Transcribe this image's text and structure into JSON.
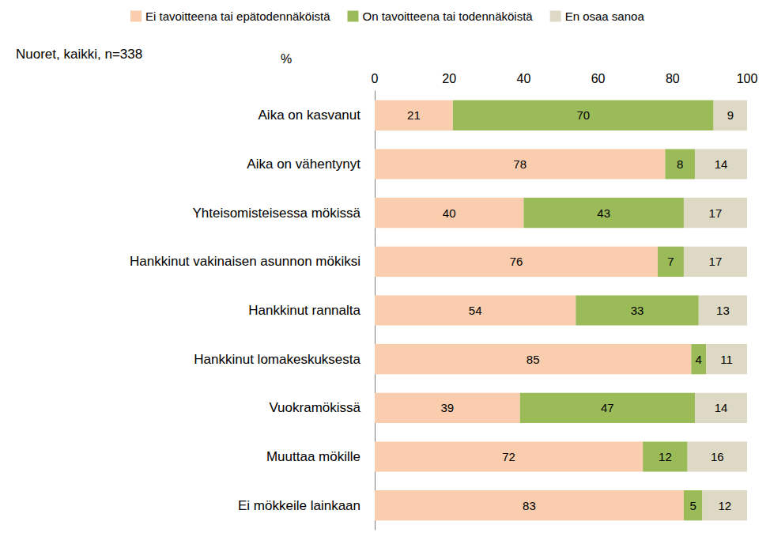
{
  "chart_data": {
    "type": "bar",
    "title": "Nuoret, kaikki, n=338",
    "xlabel": "%",
    "orientation": "horizontal",
    "stacked": true,
    "data_labels": true,
    "grid": false,
    "legend": "top",
    "categories": [
      "Aika on kasvanut",
      "Aika on vähentynyt",
      "Yhteisomisteisessa mökissä",
      "Hankkinut vakinaisen asunnon mökiksi",
      "Hankkinut rannalta",
      "Hankkinut lomakeskuksesta",
      "Vuokramökissä",
      "Muuttaa mökille",
      "Ei mökkeile lainkaan"
    ],
    "series": [
      {
        "name": "Ei tavoitteena tai epätodennäköistä",
        "color": "#F9CDAD",
        "values": [
          21,
          78,
          40,
          76,
          54,
          85,
          39,
          72,
          83
        ]
      },
      {
        "name": "On tavoitteena tai todennäköistä",
        "color": "#9BBB59",
        "values": [
          70,
          8,
          43,
          7,
          33,
          4,
          47,
          12,
          5
        ]
      },
      {
        "name": "En osaa sanoa",
        "color": "#DDD9C4",
        "values": [
          9,
          14,
          17,
          17,
          13,
          11,
          14,
          16,
          12
        ]
      }
    ],
    "xlim": [
      0,
      100
    ],
    "xticks": [
      0,
      20,
      40,
      60,
      80,
      100
    ]
  }
}
